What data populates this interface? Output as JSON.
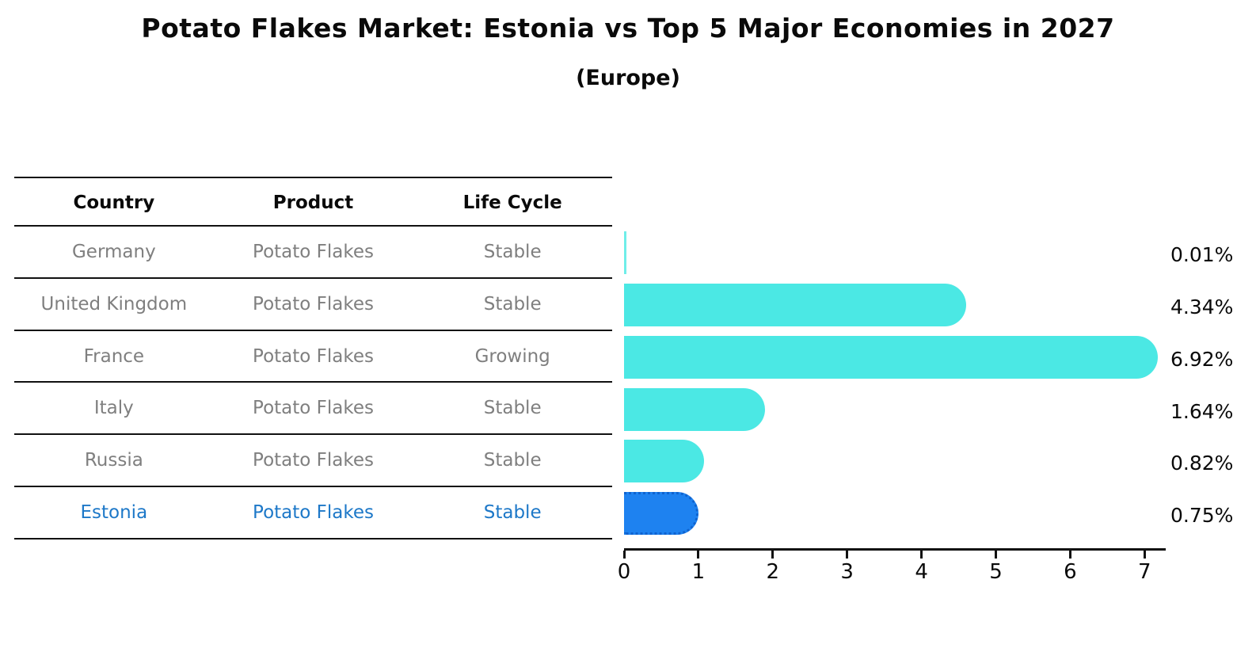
{
  "title": "Potato Flakes Market: Estonia vs Top 5 Major Economies in 2027",
  "subtitle": "(Europe)",
  "table": {
    "headers": [
      "Country",
      "Product",
      "Life Cycle"
    ],
    "rows": [
      {
        "country": "Germany",
        "product": "Potato Flakes",
        "life_cycle": "Stable",
        "highlight": false
      },
      {
        "country": "United Kingdom",
        "product": "Potato Flakes",
        "life_cycle": "Stable",
        "highlight": false
      },
      {
        "country": "France",
        "product": "Potato Flakes",
        "life_cycle": "Growing",
        "highlight": false
      },
      {
        "country": "Italy",
        "product": "Potato Flakes",
        "life_cycle": "Stable",
        "highlight": false
      },
      {
        "country": "Russia",
        "product": "Potato Flakes",
        "life_cycle": "Stable",
        "highlight": true
      }
    ],
    "last_row": {
      "country": "Estonia",
      "product": "Potato Flakes",
      "life_cycle": "Stable"
    }
  },
  "chart_data": {
    "type": "bar",
    "orientation": "horizontal",
    "title": "Potato Flakes Market: Estonia vs Top 5 Major Economies in 2027",
    "subtitle": "(Europe)",
    "categories": [
      "Germany",
      "United Kingdom",
      "France",
      "Italy",
      "Russia",
      "Estonia"
    ],
    "values": [
      0.01,
      4.34,
      6.92,
      1.64,
      0.82,
      0.75
    ],
    "value_labels": [
      "0.01%",
      "4.34%",
      "6.92%",
      "1.64%",
      "0.82%",
      "0.75%"
    ],
    "x_ticks": [
      "0",
      "1",
      "2",
      "3",
      "4",
      "5",
      "6",
      "7"
    ],
    "xlim": [
      0,
      7.3
    ],
    "grid": false,
    "legend": false,
    "bar_color": "#4be8e4",
    "highlight_bar_color": "#1e82f0",
    "highlight_index": 5,
    "highlight_text_color": "#1d78c8",
    "axis_color": "#111111",
    "table_text_color": "#7f7f7f"
  }
}
